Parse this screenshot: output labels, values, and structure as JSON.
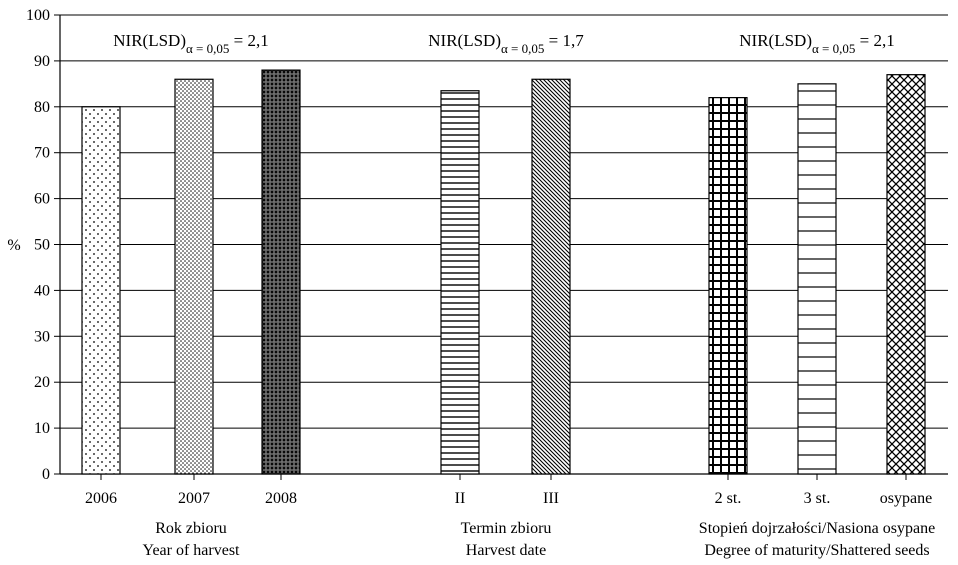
{
  "chart_data": {
    "type": "bar",
    "ylabel": "%",
    "ylim": [
      0,
      100
    ],
    "yticks": [
      0,
      10,
      20,
      30,
      40,
      50,
      60,
      70,
      80,
      90,
      100
    ],
    "grid": "horizontal",
    "groups": [
      {
        "label_pl": "Rok zbioru",
        "label_en": "Year of harvest",
        "lsd": {
          "prefix": "NIR(LSD)",
          "subscript": "α = 0,05",
          "value": "= 2,1"
        },
        "bars": [
          {
            "category": "2006",
            "value": 80,
            "pattern": "sparse-dots"
          },
          {
            "category": "2007",
            "value": 86,
            "pattern": "dense-dots"
          },
          {
            "category": "2008",
            "value": 88,
            "pattern": "dark-crosshatch"
          }
        ]
      },
      {
        "label_pl": "Termin zbioru",
        "label_en": "Harvest date",
        "lsd": {
          "prefix": "NIR(LSD)",
          "subscript": "α = 0,05",
          "value": "= 1,7"
        },
        "bars": [
          {
            "category": "II",
            "value": 83.5,
            "pattern": "horizontal-lines"
          },
          {
            "category": "III",
            "value": 86,
            "pattern": "diagonal-lines"
          }
        ]
      },
      {
        "label_pl": "Stopień dojrzałości/Nasiona osypane",
        "label_en": "Degree of maturity/Shattered seeds",
        "lsd": {
          "prefix": "NIR(LSD)",
          "subscript": "α = 0,05",
          "value": "= 2,1"
        },
        "bars": [
          {
            "category": "2 st.",
            "value": 82,
            "pattern": "grid"
          },
          {
            "category": "3 st.",
            "value": 85,
            "pattern": "wide-horizontal-lines"
          },
          {
            "category": "osypane",
            "value": 87,
            "pattern": "diagonal-crosshatch"
          }
        ]
      }
    ]
  }
}
